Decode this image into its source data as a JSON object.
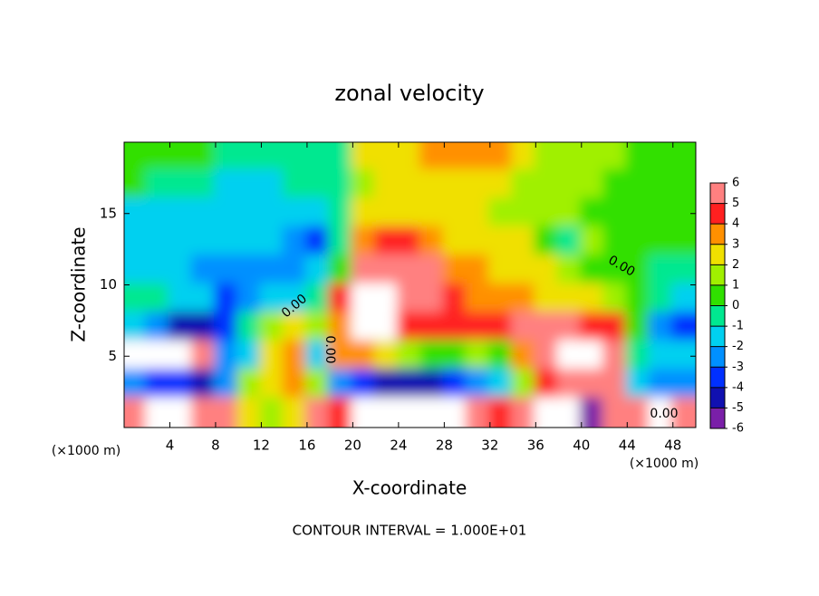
{
  "chart_data": {
    "type": "contour",
    "title": "zonal velocity",
    "x_label": "X-coordinate",
    "y_label": "Z-coordinate",
    "x_unit": "(×1000 m)",
    "footer": "CONTOUR INTERVAL = 1.000E+01",
    "contour_labels": [
      "0.00",
      "0.00",
      "0.00",
      "0.00"
    ],
    "xlim": [
      0,
      50
    ],
    "ylim": [
      0,
      20
    ],
    "xticks": [
      4,
      8,
      12,
      16,
      20,
      24,
      28,
      32,
      36,
      40,
      44,
      48
    ],
    "yticks": [
      5,
      10,
      15
    ],
    "clim": [
      -6,
      6
    ],
    "colorbar_ticks": [
      -6,
      -5,
      -4,
      -3,
      -2,
      -1,
      0,
      1,
      2,
      3,
      4,
      5,
      6
    ],
    "colorscale": [
      "#7a1fa8",
      "#1010b0",
      "#0030ff",
      "#0090ff",
      "#00d0f0",
      "#00e890",
      "#30e000",
      "#a0f000",
      "#f0e000",
      "#ff9000",
      "#ff2020",
      "#ff8080"
    ],
    "out_of_range_color": "#ffffff",
    "x": [
      1,
      3,
      5,
      7,
      9,
      11,
      13,
      15,
      17,
      19,
      21,
      23,
      25,
      27,
      29,
      31,
      33,
      35,
      37,
      39,
      41,
      43,
      45,
      47,
      49
    ],
    "y": [
      19,
      17,
      15,
      13,
      11,
      9,
      7,
      5,
      3,
      1
    ],
    "z": [
      [
        0.5,
        0.5,
        0.3,
        0,
        -0.5,
        -0.5,
        -0.8,
        -0.8,
        -0.5,
        -0.3,
        2,
        2.5,
        2.8,
        3,
        3.2,
        3.5,
        3,
        2.5,
        1.8,
        1.5,
        1.5,
        1,
        0.8,
        0.5,
        0.5
      ],
      [
        0,
        -0.5,
        -0.8,
        -1,
        -1.2,
        -1.5,
        -1.3,
        -1,
        -0.8,
        -0.5,
        1.5,
        2,
        2.3,
        2.5,
        2.5,
        2.3,
        2,
        1.8,
        1.5,
        1.5,
        1.2,
        0.8,
        0.5,
        0.5,
        0.3
      ],
      [
        -1.5,
        -1.8,
        -2,
        -2,
        -1.8,
        -1.5,
        -1.5,
        -1.5,
        -1.8,
        -1,
        2,
        2.5,
        2.5,
        2.3,
        2,
        2,
        1.8,
        1.5,
        1.3,
        1,
        0.8,
        0.5,
        0,
        0,
        0
      ],
      [
        -1.5,
        -1.8,
        -2,
        -1.8,
        -1.5,
        -1.5,
        -2,
        -3,
        -3.5,
        -0.5,
        3,
        4,
        4.5,
        3.5,
        2.8,
        2.5,
        2.2,
        2,
        0.5,
        -0.5,
        1,
        0.8,
        0.5,
        0.3,
        0
      ],
      [
        -1.2,
        -1.5,
        -2,
        -2.2,
        -2.5,
        -2.5,
        -2.8,
        -2.5,
        -2,
        0.5,
        5,
        6,
        6,
        5,
        3.5,
        3,
        2.8,
        2.5,
        2,
        1,
        0.5,
        0.3,
        0,
        -0.3,
        -0.5
      ],
      [
        -0.5,
        -1,
        -1.5,
        -2,
        -3.5,
        -3,
        -2,
        -1.5,
        -0.5,
        4,
        7,
        7.5,
        6,
        5,
        4,
        3.5,
        3,
        3,
        2.5,
        2.5,
        2,
        1.5,
        0,
        -1,
        -2
      ],
      [
        -2,
        -3,
        -4.5,
        -5,
        -4,
        -1,
        1,
        2,
        1,
        3,
        7.5,
        7,
        4,
        4.5,
        4.5,
        4,
        4,
        5,
        5.5,
        5,
        4.5,
        4,
        0.5,
        -3,
        -4
      ],
      [
        7,
        7.5,
        7.5,
        6,
        -3,
        -2,
        2,
        3.5,
        -2,
        3,
        3,
        2,
        1,
        0.5,
        0.5,
        1,
        0,
        3,
        6.5,
        7.5,
        7,
        5,
        -1,
        -2,
        -2
      ],
      [
        -3,
        -3.5,
        -4,
        -4.5,
        -3,
        1,
        2.5,
        3,
        1,
        -3,
        -4,
        -4.5,
        -5,
        -5,
        -4,
        -3,
        -2,
        1,
        4,
        6,
        6,
        5,
        -2,
        -3,
        -2.5
      ],
      [
        6,
        7.5,
        7.5,
        6,
        5,
        2,
        1,
        2.5,
        5,
        4,
        7.5,
        8,
        8,
        8,
        7,
        5.5,
        4.5,
        5,
        -7,
        -7,
        -6.5,
        5,
        6,
        7,
        5
      ]
    ]
  }
}
